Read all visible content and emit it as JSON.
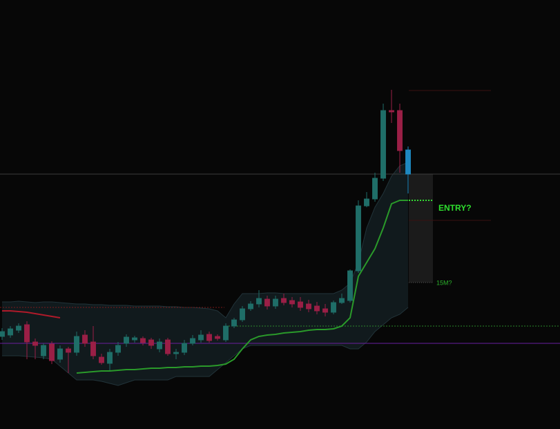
{
  "chart_data": {
    "type": "candlestick",
    "ylim": [
      0,
      62
    ],
    "up_color": "#1f6e68",
    "down_color": "#9a1f46",
    "last_color": "#1e88c0",
    "ohlc": [
      [
        13.3,
        14.5,
        12.8,
        14.0
      ],
      [
        13.5,
        14.8,
        13.1,
        14.4
      ],
      [
        14.2,
        15.2,
        13.8,
        14.8
      ],
      [
        15.0,
        15.5,
        10.0,
        12.5
      ],
      [
        12.5,
        13.0,
        10.0,
        12.0
      ],
      [
        10.5,
        12.3,
        10.0,
        12.0
      ],
      [
        12.2,
        12.6,
        9.3,
        9.8
      ],
      [
        10.0,
        12.0,
        9.5,
        11.5
      ],
      [
        11.5,
        11.8,
        8.0,
        11.0
      ],
      [
        11.0,
        14.0,
        10.5,
        13.3
      ],
      [
        13.5,
        14.2,
        11.8,
        12.3
      ],
      [
        12.5,
        14.8,
        10.0,
        10.5
      ],
      [
        10.3,
        10.8,
        9.2,
        9.5
      ],
      [
        9.4,
        11.5,
        8.2,
        11.0
      ],
      [
        11.0,
        12.5,
        10.5,
        12.0
      ],
      [
        12.3,
        13.6,
        11.8,
        13.2
      ],
      [
        12.8,
        13.4,
        12.4,
        13.1
      ],
      [
        13.0,
        13.3,
        12.0,
        12.4
      ],
      [
        12.8,
        13.1,
        11.5,
        12.0
      ],
      [
        11.5,
        13.0,
        11.0,
        12.5
      ],
      [
        12.8,
        13.1,
        10.5,
        10.8
      ],
      [
        10.8,
        11.5,
        10.0,
        11.0
      ],
      [
        11.0,
        12.8,
        10.6,
        12.3
      ],
      [
        12.3,
        13.5,
        12.0,
        13.0
      ],
      [
        12.8,
        14.2,
        12.4,
        13.5
      ],
      [
        13.6,
        14.0,
        12.4,
        12.7
      ],
      [
        13.3,
        13.6,
        12.7,
        13.0
      ],
      [
        12.8,
        15.2,
        12.5,
        14.8
      ],
      [
        14.8,
        16.0,
        14.5,
        15.7
      ],
      [
        15.7,
        17.7,
        15.4,
        17.3
      ],
      [
        17.3,
        18.4,
        17.0,
        18.0
      ],
      [
        18.0,
        20.0,
        17.5,
        18.8
      ],
      [
        18.7,
        19.2,
        17.2,
        17.7
      ],
      [
        17.7,
        19.2,
        17.3,
        18.7
      ],
      [
        18.8,
        19.5,
        17.8,
        18.2
      ],
      [
        18.5,
        19.0,
        17.5,
        18.0
      ],
      [
        18.3,
        19.0,
        17.0,
        17.5
      ],
      [
        18.0,
        18.6,
        16.8,
        17.3
      ],
      [
        17.7,
        18.3,
        16.5,
        17.0
      ],
      [
        17.3,
        18.0,
        16.2,
        16.8
      ],
      [
        16.8,
        18.5,
        16.5,
        18.2
      ],
      [
        18.2,
        19.5,
        18.0,
        18.8
      ],
      [
        18.5,
        23.0,
        18.2,
        22.8
      ],
      [
        22.8,
        33.0,
        22.5,
        32.2
      ],
      [
        32.2,
        34.2,
        32.0,
        33.2
      ],
      [
        33.2,
        37.0,
        32.8,
        36.2
      ],
      [
        36.2,
        47.0,
        35.8,
        46.0
      ],
      [
        46.0,
        49.0,
        44.2,
        45.8
      ],
      [
        46.0,
        47.0,
        37.0,
        40.2
      ],
      [
        36.8,
        40.8,
        34.0,
        40.3
      ]
    ],
    "ma": {
      "color": "#2a9a2a",
      "values": [
        null,
        null,
        null,
        null,
        null,
        null,
        null,
        null,
        null,
        8.0,
        8.1,
        8.2,
        8.3,
        8.3,
        8.4,
        8.5,
        8.5,
        8.6,
        8.7,
        8.7,
        8.8,
        8.8,
        8.9,
        8.9,
        9.0,
        9.0,
        9.1,
        9.3,
        10.0,
        11.5,
        12.8,
        13.3,
        13.5,
        13.6,
        13.8,
        13.9,
        14.0,
        14.2,
        14.3,
        14.3,
        14.4,
        14.8,
        16.0,
        22.0,
        24.0,
        26.0,
        29.0,
        32.5,
        33.0,
        33.0
      ]
    },
    "red_line": {
      "color": "#b01a2a",
      "values": [
        17.0,
        17.0,
        16.9,
        16.8,
        16.6,
        16.4,
        16.2,
        16.0,
        null,
        null,
        null,
        null,
        null,
        null,
        null,
        null,
        null,
        null,
        null,
        null,
        null,
        null,
        null,
        null,
        null,
        null,
        null,
        null,
        null,
        null,
        null,
        null,
        null,
        null,
        null,
        null,
        null,
        null,
        null,
        null,
        null,
        null,
        null,
        null,
        null,
        null,
        null,
        null,
        null,
        null
      ]
    },
    "band_color": "#1a2a30",
    "band_upper": [
      18.3,
      18.3,
      18.4,
      18.3,
      18.2,
      18.3,
      18.3,
      18.2,
      18.1,
      18.0,
      18.0,
      17.9,
      17.9,
      17.8,
      17.8,
      17.8,
      17.7,
      17.7,
      17.7,
      17.7,
      17.6,
      17.6,
      17.5,
      17.5,
      17.4,
      17.3,
      17.0,
      16.0,
      18.0,
      19.5,
      19.5,
      19.5,
      19.6,
      19.6,
      19.5,
      19.5,
      19.5,
      19.5,
      19.5,
      19.5,
      19.5,
      20.0,
      21.0,
      24.0,
      29.0,
      32.0,
      34.0,
      36.5,
      38.0,
      38.5
    ],
    "band_lower": [
      10.5,
      10.5,
      10.5,
      10.4,
      10.3,
      10.2,
      10.0,
      9.0,
      8.0,
      7.0,
      7.0,
      7.0,
      6.8,
      6.5,
      6.2,
      6.6,
      7.0,
      7.0,
      7.0,
      7.0,
      7.0,
      7.5,
      7.5,
      7.5,
      7.5,
      7.5,
      8.5,
      9.5,
      10.5,
      11.5,
      12.0,
      12.0,
      12.0,
      12.0,
      12.0,
      12.0,
      12.0,
      12.0,
      12.0,
      12.0,
      12.0,
      12.0,
      11.5,
      11.5,
      12.5,
      14.0,
      15.0,
      16.0,
      16.5,
      17.5
    ],
    "levels": [
      {
        "color": "#3c3c3c",
        "value": 36.8
      },
      {
        "color": "#2a8a2a",
        "value": 14.8
      },
      {
        "color": "#6a1fa0",
        "value": 12.3
      },
      {
        "color": "#7a1a1a",
        "value": 17.5
      },
      {
        "color": "#3a1212",
        "value": 48.9
      },
      {
        "color": "#3a1212",
        "value": 30.1
      },
      {
        "color": "#33e033",
        "value": 33.0
      },
      {
        "color": "#555555",
        "value": 21.1
      }
    ],
    "annotations": [
      {
        "text": "ENTRY?",
        "color": "#2ee02e"
      },
      {
        "text": "15M?",
        "color": "#2bb02b"
      }
    ]
  }
}
